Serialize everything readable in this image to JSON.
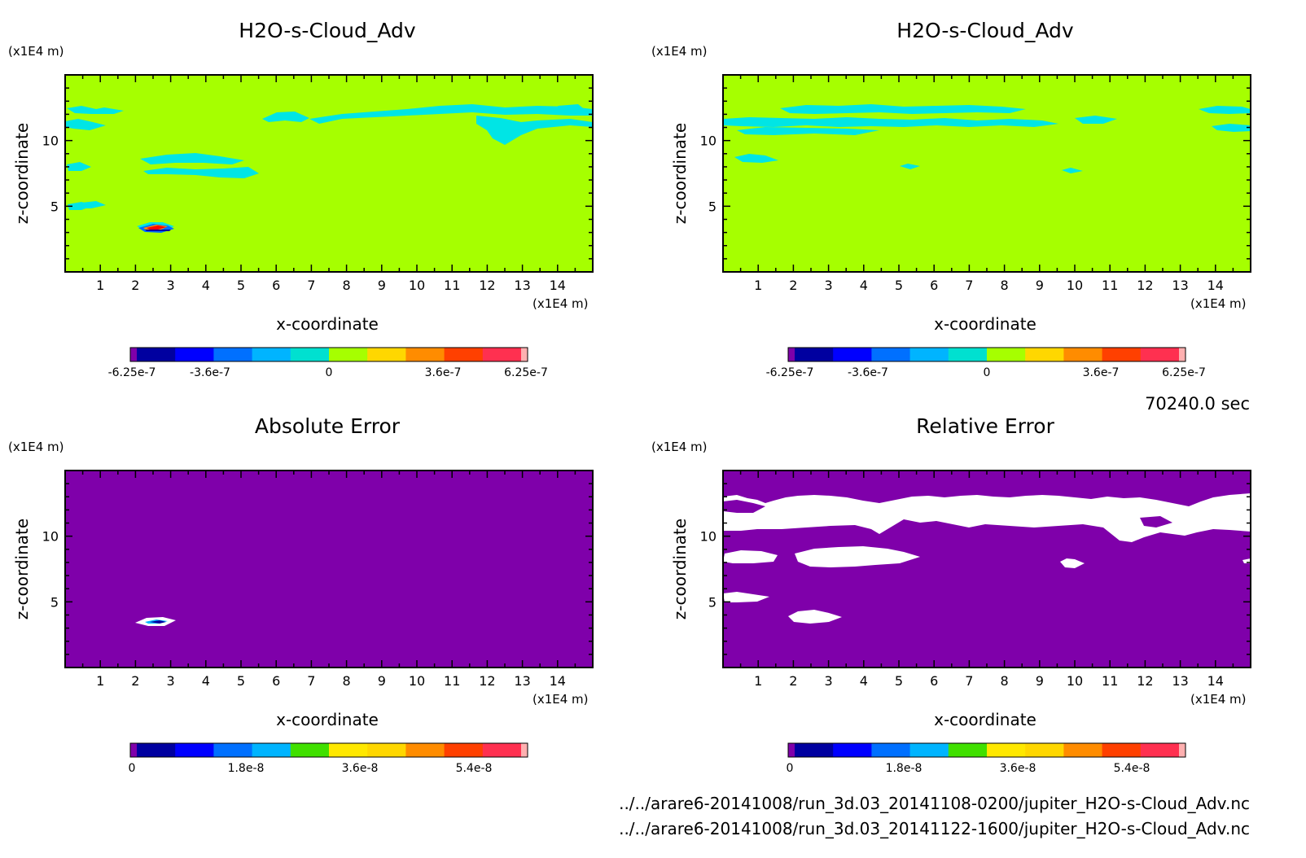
{
  "figure": {
    "time_label": "70240.0 sec",
    "file_1": "../../arare6-20141008/run_3d.03_20141108-0200/jupiter_H2O-s-Cloud_Adv.nc",
    "file_2": "../../arare6-20141008/run_3d.03_20141122-1600/jupiter_H2O-s-Cloud_Adv.nc"
  },
  "colors": {
    "background_field": "#A6FF00",
    "field_cyan": "#00E5E5",
    "error_background": "#7F00AA",
    "error_white": "#FFFFFF",
    "colormap": [
      "#7F00AA",
      "#0000A0",
      "#0000FF",
      "#0070FF",
      "#00B4FF",
      "#00E0D0",
      "#40E000",
      "#A6FF00",
      "#FFD700",
      "#FF8C00",
      "#FF4000",
      "#FF0000",
      "#FF3050",
      "#FFB0B0"
    ]
  },
  "chart_data": [
    {
      "type": "heatmap",
      "title": "H2O-s-Cloud_Adv",
      "xlabel": "x-coordinate",
      "ylabel": "z-coordinate",
      "x_unit": "(x1E4 m)",
      "y_unit": "(x1E4 m)",
      "xlim": [
        0,
        15
      ],
      "ylim": [
        0,
        15
      ],
      "x_ticks": [
        1,
        2,
        3,
        4,
        5,
        6,
        7,
        8,
        9,
        10,
        11,
        12,
        13,
        14
      ],
      "y_ticks": [
        5,
        10
      ],
      "colorbar_levels": [
        -6.25e-07,
        -3.6e-07,
        0,
        3.6e-07,
        6.25e-07
      ],
      "colorbar_labels": [
        "-6.25e-7",
        "-3.6e-7",
        "0",
        "3.6e-7",
        "6.25e-7"
      ],
      "background_value": 0,
      "features": [
        {
          "kind": "cyan-band",
          "x": [
            0.1,
            1.2
          ],
          "z": 12.3
        },
        {
          "kind": "cyan-band",
          "x": [
            0.0,
            1.1
          ],
          "z": 11.2
        },
        {
          "kind": "cyan-band",
          "x": [
            5.8,
            7.3
          ],
          "z": 11.7
        },
        {
          "kind": "cyan-band",
          "x": [
            9.0,
            15.0
          ],
          "z": 12.5
        },
        {
          "kind": "cyan-band",
          "x": [
            11.5,
            15.0
          ],
          "z": 11.2
        },
        {
          "kind": "cyan-band",
          "x": [
            2.2,
            4.9
          ],
          "z": 8.6
        },
        {
          "kind": "cyan-band",
          "x": [
            2.3,
            5.5
          ],
          "z": 7.6
        },
        {
          "kind": "cyan-band",
          "x": [
            0.1,
            0.7
          ],
          "z": 8.1
        },
        {
          "kind": "cyan-band",
          "x": [
            0.2,
            1.2
          ],
          "z": 5.2
        },
        {
          "kind": "extremum",
          "x": 2.6,
          "z": 3.5,
          "value": 6.25e-07
        }
      ]
    },
    {
      "type": "heatmap",
      "title": "H2O-s-Cloud_Adv",
      "xlabel": "x-coordinate",
      "ylabel": "z-coordinate",
      "x_unit": "(x1E4 m)",
      "y_unit": "(x1E4 m)",
      "xlim": [
        0,
        15
      ],
      "ylim": [
        0,
        15
      ],
      "x_ticks": [
        1,
        2,
        3,
        4,
        5,
        6,
        7,
        8,
        9,
        10,
        11,
        12,
        13,
        14
      ],
      "y_ticks": [
        5,
        10
      ],
      "colorbar_levels": [
        -6.25e-07,
        -3.6e-07,
        0,
        3.6e-07,
        6.25e-07
      ],
      "colorbar_labels": [
        "-6.25e-7",
        "-3.6e-7",
        "0",
        "3.6e-7",
        "6.25e-7"
      ],
      "background_value": 0,
      "features": [
        {
          "kind": "cyan-band",
          "x": [
            1.5,
            11.2
          ],
          "z": 12.6
        },
        {
          "kind": "cyan-band",
          "x": [
            0.0,
            10.0
          ],
          "z": 11.2
        },
        {
          "kind": "cyan-band",
          "x": [
            0.4,
            5.2
          ],
          "z": 10.6
        },
        {
          "kind": "cyan-band",
          "x": [
            10.5,
            11.5
          ],
          "z": 11.6
        },
        {
          "kind": "cyan-band",
          "x": [
            13.6,
            15.0
          ],
          "z": 12.5
        },
        {
          "kind": "cyan-band",
          "x": [
            14.0,
            15.0
          ],
          "z": 10.5
        },
        {
          "kind": "cyan-band",
          "x": [
            0.4,
            1.6
          ],
          "z": 8.5
        },
        {
          "kind": "cyan-band",
          "x": [
            5.3,
            5.8
          ],
          "z": 7.9
        },
        {
          "kind": "cyan-band",
          "x": [
            9.8,
            10.3
          ],
          "z": 7.6
        }
      ]
    },
    {
      "type": "heatmap",
      "title": "Absolute Error",
      "xlabel": "x-coordinate",
      "ylabel": "z-coordinate",
      "x_unit": "(x1E4 m)",
      "y_unit": "(x1E4 m)",
      "xlim": [
        0,
        15
      ],
      "ylim": [
        0,
        15
      ],
      "x_ticks": [
        1,
        2,
        3,
        4,
        5,
        6,
        7,
        8,
        9,
        10,
        11,
        12,
        13,
        14
      ],
      "y_ticks": [
        5,
        10
      ],
      "colorbar_levels": [
        0,
        1.8e-08,
        3.6e-08,
        5.4e-08
      ],
      "colorbar_labels": [
        "0",
        "1.8e-8",
        "3.6e-8",
        "5.4e-8"
      ],
      "background_value": 0,
      "features": [
        {
          "kind": "extremum",
          "x": 2.6,
          "z": 3.5,
          "value": 6e-08
        }
      ]
    },
    {
      "type": "heatmap",
      "title": "Relative Error",
      "xlabel": "x-coordinate",
      "ylabel": "z-coordinate",
      "x_unit": "(x1E4 m)",
      "y_unit": "(x1E4 m)",
      "xlim": [
        0,
        15
      ],
      "ylim": [
        0,
        15
      ],
      "x_ticks": [
        1,
        2,
        3,
        4,
        5,
        6,
        7,
        8,
        9,
        10,
        11,
        12,
        13,
        14
      ],
      "y_ticks": [
        5,
        10
      ],
      "colorbar_levels": [
        0,
        1.8e-08,
        3.6e-08,
        5.4e-08
      ],
      "colorbar_labels": [
        "0",
        "1.8e-8",
        "3.6e-8",
        "5.4e-8"
      ],
      "background_value": 0,
      "features": [
        {
          "kind": "undefined-region",
          "x": [
            0.0,
            15.0
          ],
          "z": [
            11.0,
            12.8
          ]
        },
        {
          "kind": "undefined-region",
          "x": [
            11.5,
            13.2
          ],
          "z": [
            10.2,
            11.0
          ]
        },
        {
          "kind": "undefined-region",
          "x": [
            0.0,
            1.6
          ],
          "z": [
            8.2,
            9.0
          ]
        },
        {
          "kind": "undefined-region",
          "x": [
            2.1,
            5.5
          ],
          "z": [
            7.5,
            8.8
          ]
        },
        {
          "kind": "undefined-region",
          "x": [
            9.7,
            10.3
          ],
          "z": [
            7.4,
            8.0
          ]
        },
        {
          "kind": "undefined-region",
          "x": [
            0.0,
            1.2
          ],
          "z": [
            5.0,
            5.8
          ]
        },
        {
          "kind": "undefined-region",
          "x": [
            1.9,
            3.3
          ],
          "z": [
            3.1,
            4.0
          ]
        }
      ]
    }
  ]
}
